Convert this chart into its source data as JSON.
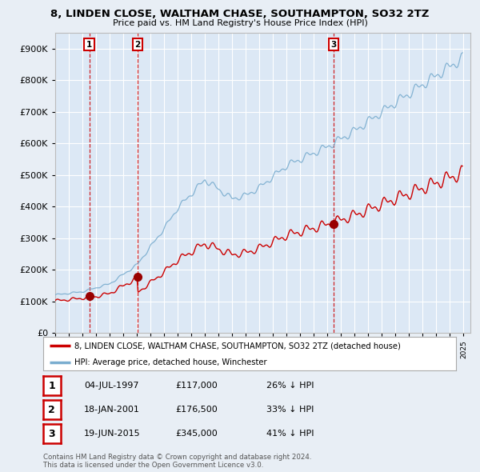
{
  "title": "8, LINDEN CLOSE, WALTHAM CHASE, SOUTHAMPTON, SO32 2TZ",
  "subtitle": "Price paid vs. HM Land Registry's House Price Index (HPI)",
  "background_color": "#e8eef5",
  "plot_bg_color": "#dce8f5",
  "grid_color": "#ffffff",
  "sale_year_floats": [
    1997.5,
    2001.04,
    2015.46
  ],
  "sale_prices": [
    117000,
    176500,
    345000
  ],
  "sale_labels": [
    "1",
    "2",
    "3"
  ],
  "hpi_label": "HPI: Average price, detached house, Winchester",
  "property_label": "8, LINDEN CLOSE, WALTHAM CHASE, SOUTHAMPTON, SO32 2TZ (detached house)",
  "legend_entries": [
    {
      "label": "04-JUL-1997",
      "price": "£117,000",
      "pct": "26% ↓ HPI"
    },
    {
      "label": "18-JAN-2001",
      "price": "£176,500",
      "pct": "33% ↓ HPI"
    },
    {
      "label": "19-JUN-2015",
      "price": "£345,000",
      "pct": "41% ↓ HPI"
    }
  ],
  "ylim": [
    0,
    950000
  ],
  "yticks": [
    0,
    100000,
    200000,
    300000,
    400000,
    500000,
    600000,
    700000,
    800000,
    900000
  ],
  "footer": "Contains HM Land Registry data © Crown copyright and database right 2024.\nThis data is licensed under the Open Government Licence v3.0.",
  "property_color": "#cc0000",
  "hpi_color": "#7aadcf",
  "sale_marker_color": "#990000",
  "dashed_line_color": "#cc0000",
  "xlim_start": 1995.0,
  "xlim_end": 2025.5
}
